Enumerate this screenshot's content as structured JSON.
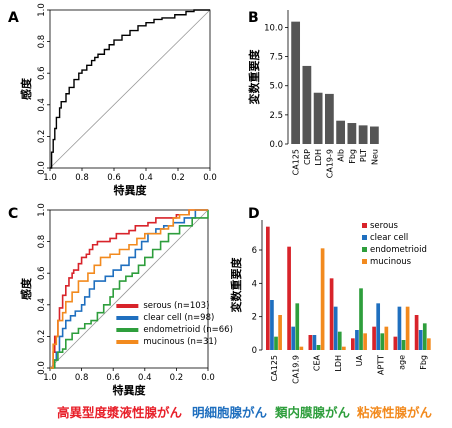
{
  "chart_data": [
    {
      "panel": "A",
      "type": "line",
      "xlabel": "特異度",
      "ylabel": "感度",
      "xlim": [
        1.0,
        0.0
      ],
      "ylim": [
        0.0,
        1.0
      ],
      "xticks": [
        "1.0",
        "0.8",
        "0.6",
        "0.4",
        "0.2",
        "0.0"
      ],
      "yticks": [
        "0.0",
        "0.2",
        "0.4",
        "0.6",
        "0.8",
        "1.0"
      ],
      "reference_line": "diagonal",
      "series": [
        {
          "color": "#000000",
          "x": [
            1.0,
            0.99,
            0.99,
            0.98,
            0.97,
            0.96,
            0.94,
            0.93,
            0.9,
            0.88,
            0.85,
            0.82,
            0.8,
            0.77,
            0.74,
            0.72,
            0.7,
            0.66,
            0.63,
            0.6,
            0.55,
            0.5,
            0.45,
            0.4,
            0.35,
            0.3,
            0.22,
            0.15,
            0.1,
            0.05,
            0.0
          ],
          "y": [
            0.0,
            0.04,
            0.1,
            0.18,
            0.25,
            0.32,
            0.38,
            0.42,
            0.47,
            0.51,
            0.56,
            0.6,
            0.62,
            0.65,
            0.68,
            0.7,
            0.72,
            0.75,
            0.78,
            0.81,
            0.84,
            0.87,
            0.9,
            0.92,
            0.94,
            0.95,
            0.97,
            0.99,
            1.0,
            1.0,
            1.0
          ]
        }
      ]
    },
    {
      "panel": "B",
      "type": "bar",
      "ylabel": "変数重要度",
      "ylim": [
        0,
        11.5
      ],
      "yticks": [
        "0.0",
        "2.5",
        "5.0",
        "7.5",
        "10.0"
      ],
      "categories": [
        "CA125",
        "CRP",
        "LDH",
        "CA19-9",
        "Alb",
        "Fbg",
        "PLT",
        "Neu"
      ],
      "values": [
        10.5,
        6.7,
        4.4,
        4.3,
        2.0,
        1.8,
        1.6,
        1.5
      ],
      "bar_color": "#555555"
    },
    {
      "panel": "C",
      "type": "line",
      "xlabel": "特異度",
      "ylabel": "感度",
      "xlim": [
        1.0,
        0.0
      ],
      "ylim": [
        0.0,
        1.0
      ],
      "xticks": [
        "1.0",
        "0.8",
        "0.6",
        "0.4",
        "0.2",
        "0.0"
      ],
      "yticks": [
        "0.0",
        "0.2",
        "0.4",
        "0.6",
        "0.8",
        "1.0"
      ],
      "reference_line": "diagonal",
      "legend": "inside-bottom-right",
      "series": [
        {
          "name": "serous (n=103)",
          "color": "#d8232a",
          "x": [
            1.0,
            0.98,
            0.97,
            0.95,
            0.94,
            0.92,
            0.9,
            0.88,
            0.86,
            0.85,
            0.82,
            0.8,
            0.77,
            0.75,
            0.73,
            0.7,
            0.66,
            0.62,
            0.58,
            0.54,
            0.5,
            0.46,
            0.42,
            0.38,
            0.33,
            0.28,
            0.2,
            0.12,
            0.05,
            0.0
          ],
          "y": [
            0.0,
            0.1,
            0.2,
            0.3,
            0.38,
            0.46,
            0.52,
            0.57,
            0.6,
            0.62,
            0.66,
            0.7,
            0.72,
            0.75,
            0.78,
            0.8,
            0.8,
            0.82,
            0.85,
            0.85,
            0.87,
            0.9,
            0.9,
            0.92,
            0.95,
            0.95,
            0.97,
            1.0,
            1.0,
            1.0
          ]
        },
        {
          "name": "clear cell (n=98)",
          "color": "#1f6fbf",
          "x": [
            1.0,
            0.98,
            0.96,
            0.94,
            0.92,
            0.9,
            0.87,
            0.84,
            0.8,
            0.78,
            0.75,
            0.72,
            0.7,
            0.65,
            0.6,
            0.55,
            0.5,
            0.46,
            0.42,
            0.38,
            0.33,
            0.28,
            0.22,
            0.15,
            0.08,
            0.0
          ],
          "y": [
            0.0,
            0.05,
            0.1,
            0.2,
            0.25,
            0.3,
            0.33,
            0.36,
            0.4,
            0.45,
            0.5,
            0.55,
            0.55,
            0.58,
            0.62,
            0.65,
            0.7,
            0.75,
            0.8,
            0.85,
            0.88,
            0.9,
            0.92,
            0.95,
            1.0,
            1.0
          ]
        },
        {
          "name": "endometrioid (n=66)",
          "color": "#2e9e3c",
          "x": [
            1.0,
            0.97,
            0.95,
            0.92,
            0.9,
            0.86,
            0.82,
            0.78,
            0.74,
            0.7,
            0.66,
            0.62,
            0.6,
            0.56,
            0.52,
            0.48,
            0.44,
            0.4,
            0.35,
            0.3,
            0.25,
            0.18,
            0.1,
            0.0
          ],
          "y": [
            0.0,
            0.05,
            0.1,
            0.12,
            0.18,
            0.22,
            0.25,
            0.28,
            0.3,
            0.35,
            0.4,
            0.45,
            0.5,
            0.55,
            0.58,
            0.6,
            0.65,
            0.7,
            0.75,
            0.8,
            0.85,
            0.9,
            0.95,
            1.0
          ]
        },
        {
          "name": "mucinous (n=31)",
          "color": "#f28a1e",
          "x": [
            1.0,
            0.98,
            0.96,
            0.95,
            0.92,
            0.9,
            0.86,
            0.82,
            0.78,
            0.76,
            0.72,
            0.68,
            0.62,
            0.56,
            0.5,
            0.45,
            0.4,
            0.35,
            0.3,
            0.25,
            0.22,
            0.18,
            0.12,
            0.05,
            0.0
          ],
          "y": [
            0.0,
            0.15,
            0.2,
            0.3,
            0.35,
            0.42,
            0.48,
            0.55,
            0.55,
            0.6,
            0.65,
            0.7,
            0.72,
            0.75,
            0.78,
            0.82,
            0.85,
            0.85,
            0.88,
            0.9,
            0.95,
            0.97,
            1.0,
            1.0,
            1.0
          ]
        }
      ]
    },
    {
      "panel": "D",
      "type": "bar",
      "ylabel": "変数重要度",
      "ylim": [
        0,
        7.8
      ],
      "yticks": [
        "0",
        "2",
        "4",
        "6"
      ],
      "categories": [
        "CA125",
        "CA19.9",
        "CEA",
        "LDH",
        "UA",
        "APTT",
        "age",
        "Fbg"
      ],
      "legend": "top-right",
      "series": [
        {
          "name": "serous",
          "color": "#d8232a",
          "values": [
            7.4,
            6.2,
            0.9,
            4.3,
            0.7,
            1.4,
            0.8,
            2.1
          ]
        },
        {
          "name": "clear cell",
          "color": "#1f6fbf",
          "values": [
            3.0,
            1.4,
            0.9,
            2.6,
            1.2,
            2.8,
            2.6,
            1.2
          ]
        },
        {
          "name": "endometrioid",
          "color": "#2e9e3c",
          "values": [
            0.8,
            2.8,
            0.3,
            1.1,
            3.7,
            1.0,
            0.6,
            1.6
          ]
        },
        {
          "name": "mucinous",
          "color": "#f28a1e",
          "values": [
            2.1,
            0.2,
            6.1,
            0.2,
            1.0,
            1.4,
            2.6,
            0.7
          ]
        }
      ]
    }
  ],
  "panel_labels": [
    "A",
    "B",
    "C",
    "D"
  ],
  "caption": [
    {
      "text": "高異型度漿液性腺がん",
      "color": "#e8202a"
    },
    {
      "text": "明細胞腺がん",
      "color": "#1f6fbf"
    },
    {
      "text": "類内膜腺がん",
      "color": "#2e9e3c"
    },
    {
      "text": "粘液性腺がん",
      "color": "#f28a1e"
    }
  ]
}
